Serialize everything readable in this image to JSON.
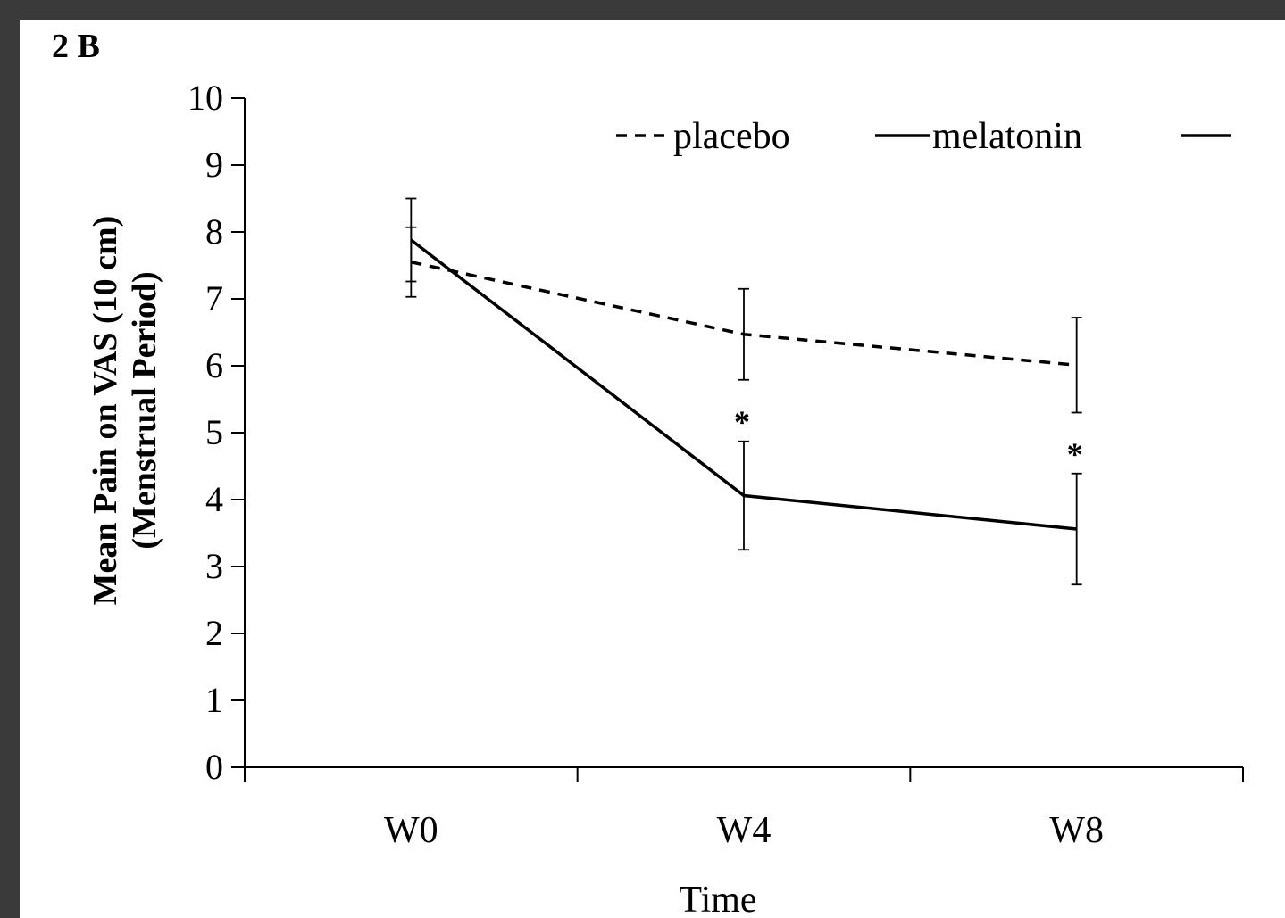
{
  "colors": {
    "frame": "#3a3a3a",
    "background": "#ffffff",
    "ink": "#000000"
  },
  "chart_data": {
    "type": "line",
    "panel_label": "2 B",
    "xlabel": "Time",
    "ylabel_line1": "Mean Pain on VAS (10 cm)",
    "ylabel_line2": "(Menstrual Period)",
    "categories": [
      "W0",
      "W4",
      "W8"
    ],
    "ylim": [
      0,
      10
    ],
    "y_ticks": [
      "0",
      "1",
      "2",
      "3",
      "4",
      "5",
      "6",
      "7",
      "8",
      "9",
      "10"
    ],
    "grid": false,
    "legend_position": "top-right",
    "series": [
      {
        "name": "placebo",
        "line_style": "dashed",
        "values": [
          7.55,
          6.47,
          6.01
        ],
        "error": [
          0.52,
          0.68,
          0.71
        ]
      },
      {
        "name": "melatonin",
        "line_style": "solid",
        "values": [
          7.88,
          4.06,
          3.56
        ],
        "error": [
          0.62,
          0.81,
          0.83
        ]
      }
    ],
    "significance_markers": [
      {
        "category": "W4",
        "symbol": "*"
      },
      {
        "category": "W8",
        "symbol": "*"
      }
    ]
  }
}
